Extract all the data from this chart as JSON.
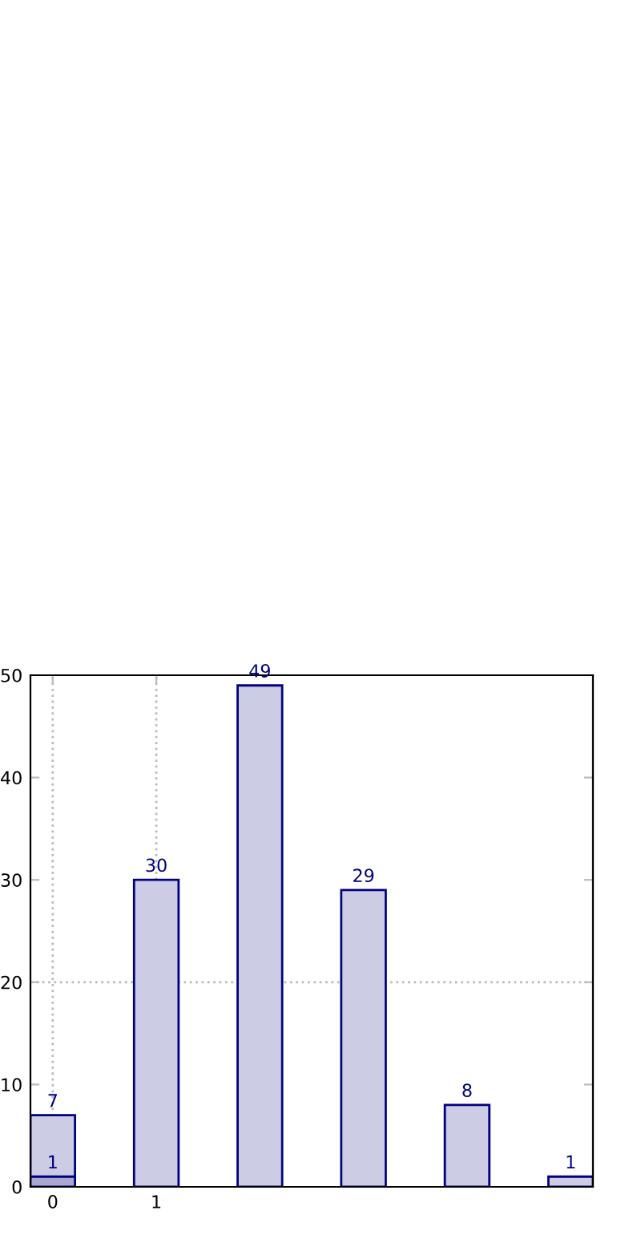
{
  "chart_data": {
    "type": "bar",
    "x": [
      0,
      1,
      2,
      3,
      4,
      5
    ],
    "series": [
      {
        "color": "#cccce4",
        "values": [
          7,
          30,
          49,
          29,
          8,
          1
        ]
      },
      {
        "color": "#a8a8cf",
        "values": [
          1,
          null,
          null,
          null,
          null,
          null
        ]
      }
    ],
    "data_labels": true,
    "xlim": [
      -0.215,
      5.215
    ],
    "xticks": [
      0,
      1
    ],
    "ylim": [
      0,
      50
    ],
    "yticks": [
      0,
      10,
      20,
      30,
      40,
      50
    ],
    "grid": false,
    "ref_lines": [
      {
        "axis": "x",
        "value": 0,
        "line_style": "dotted",
        "color": "#bbbbbb"
      },
      {
        "axis": "x",
        "value": 1,
        "line_style": "dotted",
        "color": "#bbbbbb"
      },
      {
        "axis": "y",
        "value": 20,
        "line_style": "dotted",
        "color": "#bbbbbb"
      }
    ]
  }
}
